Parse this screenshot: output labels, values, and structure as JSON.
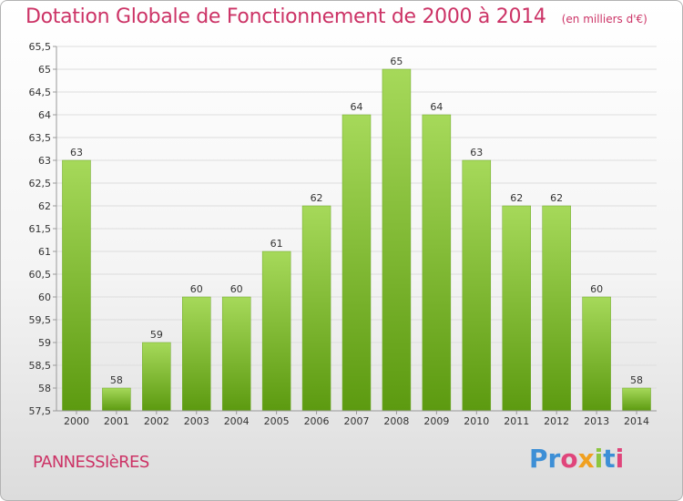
{
  "header": {
    "title": "Dotation Globale de Fonctionnement de 2000 à 2014",
    "unit_note": "(en milliers d'€)"
  },
  "footer": {
    "commune": "PANNESSIèRES",
    "logo_text": "Proxiti",
    "logo_colors": [
      "#3d8fd6",
      "#3d8fd6",
      "#e0457b",
      "#f0a020",
      "#8cc63f",
      "#3d8fd6",
      "#e0457b"
    ]
  },
  "colors": {
    "title": "#cc3366",
    "bar_top": "#a6d95a",
    "bar_bottom": "#5c9a10",
    "grid": "#dddddd",
    "axis": "#999999",
    "tick_text": "#333333"
  },
  "chart_data": {
    "type": "bar",
    "title": "Dotation Globale de Fonctionnement de 2000 à 2014",
    "subtitle": "(en milliers d'€)",
    "xlabel": "",
    "ylabel": "",
    "categories": [
      "2000",
      "2001",
      "2002",
      "2003",
      "2004",
      "2005",
      "2006",
      "2007",
      "2008",
      "2009",
      "2010",
      "2011",
      "2012",
      "2013",
      "2014"
    ],
    "values": [
      63,
      58,
      59,
      60,
      60,
      61,
      62,
      64,
      65,
      64,
      63,
      62,
      62,
      60,
      58
    ],
    "data_labels": [
      "63",
      "58",
      "59",
      "60",
      "60",
      "61",
      "62",
      "64",
      "65",
      "64",
      "63",
      "62",
      "62",
      "60",
      "58"
    ],
    "ylim": [
      57.5,
      65.5
    ],
    "yticks": [
      57.5,
      58,
      58.5,
      59,
      59.5,
      60,
      60.5,
      61,
      61.5,
      62,
      62.5,
      63,
      63.5,
      64,
      64.5,
      65,
      65.5
    ],
    "ytick_labels": [
      "57,5",
      "58",
      "58,5",
      "59",
      "59,5",
      "60",
      "60,5",
      "61",
      "61,5",
      "62",
      "62,5",
      "63",
      "63,5",
      "64",
      "64,5",
      "65",
      "65,5"
    ],
    "grid": true,
    "legend": "none"
  }
}
